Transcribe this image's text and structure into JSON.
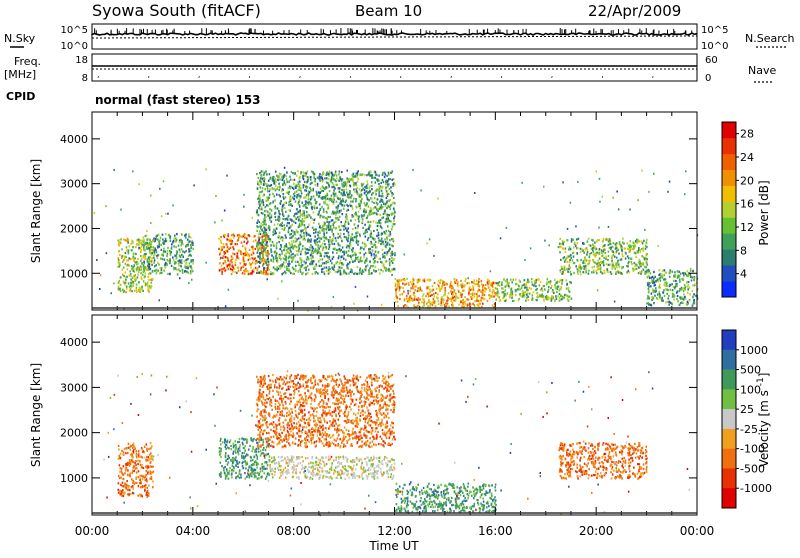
{
  "header": {
    "station": "Syowa South (fitACF)",
    "beam": "Beam 10",
    "date": "22/Apr/2009"
  },
  "strip_labels": {
    "nsky": "N.Sky",
    "freq_line1": "Freq.",
    "freq_line2": "[MHz]",
    "cpid": "CPID",
    "nsearch": "N.Search",
    "nave": "Nave"
  },
  "strip_ticks": {
    "nsky_top": "10^5",
    "nsky_bottom": "10^0",
    "nsearch_top": "10^5",
    "nsearch_bottom": "10^0",
    "freq_top": "18",
    "freq_bottom": "8",
    "nave_top": "60",
    "nave_bottom": "0"
  },
  "cpid_text": "normal (fast stereo) 153",
  "chart_data": [
    {
      "type": "heatmap",
      "title": "",
      "xlabel": "",
      "ylabel": "Slant Range [km]",
      "x_ticks": [
        "00:00",
        "04:00",
        "08:00",
        "12:00",
        "16:00",
        "20:00",
        "00:00"
      ],
      "xlim_hours": [
        0,
        24
      ],
      "y_ticks": [
        1000,
        2000,
        3000,
        4000
      ],
      "ylim": [
        180,
        4600
      ],
      "colorbar": {
        "label": "Power [dB]",
        "ticks": [
          4,
          8,
          12,
          16,
          20,
          24,
          28
        ],
        "range": [
          0,
          30
        ],
        "colors": [
          "#0a2cff",
          "#1f4fbf",
          "#2b7d6d",
          "#3fa05a",
          "#66c033",
          "#b4d030",
          "#f0c000",
          "#f09000",
          "#f06000",
          "#e83000",
          "#e00000"
        ]
      },
      "echo_regions": [
        {
          "t": [
            1.0,
            2.4
          ],
          "r": [
            600,
            1800
          ],
          "level": 14
        },
        {
          "t": [
            2.0,
            4.0
          ],
          "r": [
            1000,
            1900
          ],
          "level": 10
        },
        {
          "t": [
            5.0,
            7.0
          ],
          "r": [
            1000,
            1900
          ],
          "level": 22
        },
        {
          "t": [
            6.5,
            12.0
          ],
          "r": [
            1000,
            3300
          ],
          "level": 10
        },
        {
          "t": [
            12.0,
            16.0
          ],
          "r": [
            250,
            900
          ],
          "level": 20
        },
        {
          "t": [
            16.0,
            19.0
          ],
          "r": [
            400,
            900
          ],
          "level": 12
        },
        {
          "t": [
            18.5,
            22.0
          ],
          "r": [
            1000,
            1800
          ],
          "level": 12
        },
        {
          "t": [
            22.0,
            24.0
          ],
          "r": [
            300,
            1100
          ],
          "level": 10
        }
      ]
    },
    {
      "type": "heatmap",
      "title": "",
      "xlabel": "Time UT",
      "ylabel": "Slant Range [km]",
      "x_ticks": [
        "00:00",
        "04:00",
        "08:00",
        "12:00",
        "16:00",
        "20:00",
        "00:00"
      ],
      "xlim_hours": [
        0,
        24
      ],
      "y_ticks": [
        1000,
        2000,
        3000,
        4000
      ],
      "ylim": [
        180,
        4600
      ],
      "colorbar": {
        "label": "Velocity [m s^-1]",
        "tick_labels": [
          "1000",
          "500",
          "100",
          "25",
          "-25",
          "-100",
          "-500",
          "-1000"
        ],
        "colors": [
          "#1f3fbf",
          "#2f6fa0",
          "#3f9a5a",
          "#6fc040",
          "#c8c8c8",
          "#f0a020",
          "#f07010",
          "#e83000",
          "#e00000"
        ]
      },
      "echo_regions": [
        {
          "t": [
            1.0,
            2.4
          ],
          "r": [
            600,
            1800
          ],
          "level": "-500"
        },
        {
          "t": [
            5.0,
            7.0
          ],
          "r": [
            1000,
            1900
          ],
          "level": "100"
        },
        {
          "t": [
            6.5,
            12.0
          ],
          "r": [
            1700,
            3300
          ],
          "level": "-500"
        },
        {
          "t": [
            7.0,
            12.0
          ],
          "r": [
            1000,
            1500
          ],
          "level": "25"
        },
        {
          "t": [
            12.0,
            16.0
          ],
          "r": [
            250,
            900
          ],
          "level": "100"
        },
        {
          "t": [
            18.5,
            22.0
          ],
          "r": [
            1000,
            1800
          ],
          "level": "-500"
        }
      ]
    }
  ]
}
